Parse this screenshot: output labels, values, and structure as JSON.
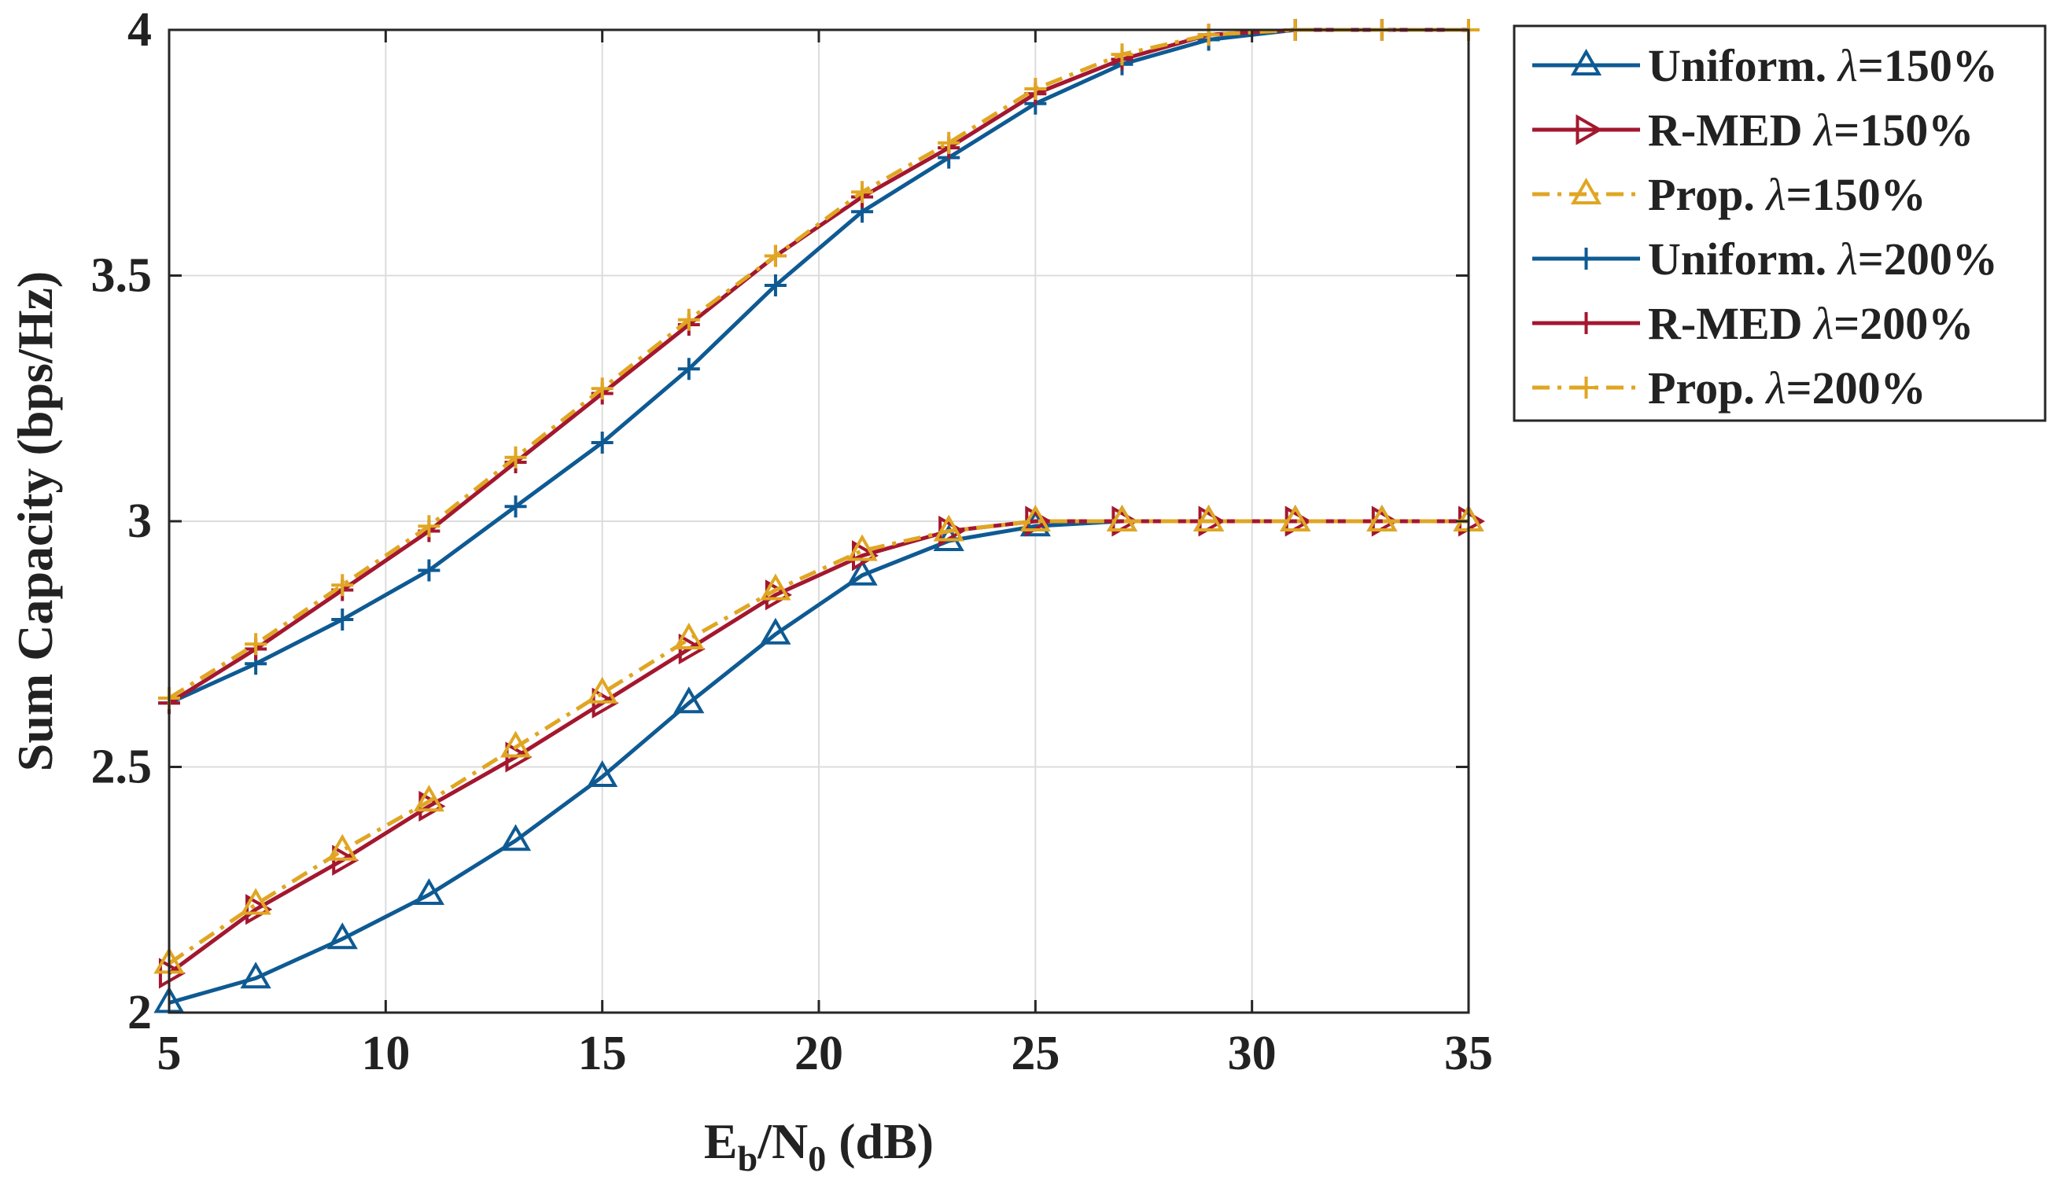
{
  "chart_data": {
    "type": "line",
    "title": "",
    "xlabel": "E_b/N_0 (dB)",
    "xlabel_parts": {
      "base1": "E",
      "sub1": "b",
      "sep": "/N",
      "sub2": "0",
      "unit": " (dB)"
    },
    "ylabel": "Sum Capacity (bps/Hz)",
    "xlim": [
      5,
      35
    ],
    "ylim": [
      2,
      4
    ],
    "xticks": [
      5,
      10,
      15,
      20,
      25,
      30,
      35
    ],
    "yticks": [
      2,
      2.5,
      3,
      3.5,
      4
    ],
    "xtick_labels": [
      "5",
      "10",
      "15",
      "20",
      "25",
      "30",
      "35"
    ],
    "ytick_labels": [
      "2",
      "2.5",
      "3",
      "3.5",
      "4"
    ],
    "grid": true,
    "legend_position": "outside-top-right",
    "x": [
      5,
      7,
      9,
      11,
      13,
      15,
      17,
      19,
      21,
      23,
      25,
      27,
      29,
      31,
      33,
      35
    ],
    "series": [
      {
        "name": "Uniform. λ=150%",
        "label_prefix": "Uniform. ",
        "label_symbol": "λ",
        "label_suffix": "=150%",
        "color": "#0e5a93",
        "dash": "solid",
        "marker": "triangle-up",
        "values": [
          2.02,
          2.07,
          2.15,
          2.24,
          2.35,
          2.48,
          2.63,
          2.77,
          2.89,
          2.96,
          2.99,
          3.0,
          3.0,
          3.0,
          3.0,
          3.0
        ]
      },
      {
        "name": "R-MED λ=150%",
        "label_prefix": "R-MED ",
        "label_symbol": "λ",
        "label_suffix": "=150%",
        "color": "#a3172f",
        "dash": "solid",
        "marker": "triangle-right",
        "values": [
          2.08,
          2.21,
          2.31,
          2.42,
          2.52,
          2.63,
          2.74,
          2.85,
          2.93,
          2.98,
          3.0,
          3.0,
          3.0,
          3.0,
          3.0,
          3.0
        ]
      },
      {
        "name": "Prop. λ=150%",
        "label_prefix": "Prop. ",
        "label_symbol": "λ",
        "label_suffix": "=150%",
        "color": "#e0a623",
        "dash": "dashdot",
        "marker": "triangle-up",
        "values": [
          2.1,
          2.22,
          2.33,
          2.43,
          2.54,
          2.65,
          2.76,
          2.86,
          2.94,
          2.98,
          3.0,
          3.0,
          3.0,
          3.0,
          3.0,
          3.0
        ]
      },
      {
        "name": "Uniform. λ=200%",
        "label_prefix": "Uniform. ",
        "label_symbol": "λ",
        "label_suffix": "=200%",
        "color": "#0e5a93",
        "dash": "solid",
        "marker": "plus",
        "values": [
          2.63,
          2.71,
          2.8,
          2.9,
          3.03,
          3.16,
          3.31,
          3.48,
          3.63,
          3.74,
          3.85,
          3.93,
          3.98,
          4.0,
          4.0,
          4.0
        ]
      },
      {
        "name": "R-MED λ=200%",
        "label_prefix": "R-MED ",
        "label_symbol": "λ",
        "label_suffix": "=200%",
        "color": "#a3172f",
        "dash": "solid",
        "marker": "plus",
        "values": [
          2.63,
          2.74,
          2.86,
          2.98,
          3.12,
          3.26,
          3.4,
          3.54,
          3.66,
          3.76,
          3.87,
          3.94,
          3.99,
          4.0,
          4.0,
          4.0
        ]
      },
      {
        "name": "Prop. λ=200%",
        "label_prefix": "Prop. ",
        "label_symbol": "λ",
        "label_suffix": "=200%",
        "color": "#e0a623",
        "dash": "dashdot",
        "marker": "plus",
        "values": [
          2.64,
          2.75,
          2.87,
          2.99,
          3.13,
          3.27,
          3.41,
          3.54,
          3.67,
          3.77,
          3.88,
          3.95,
          3.99,
          4.0,
          4.0,
          4.0
        ]
      }
    ]
  }
}
